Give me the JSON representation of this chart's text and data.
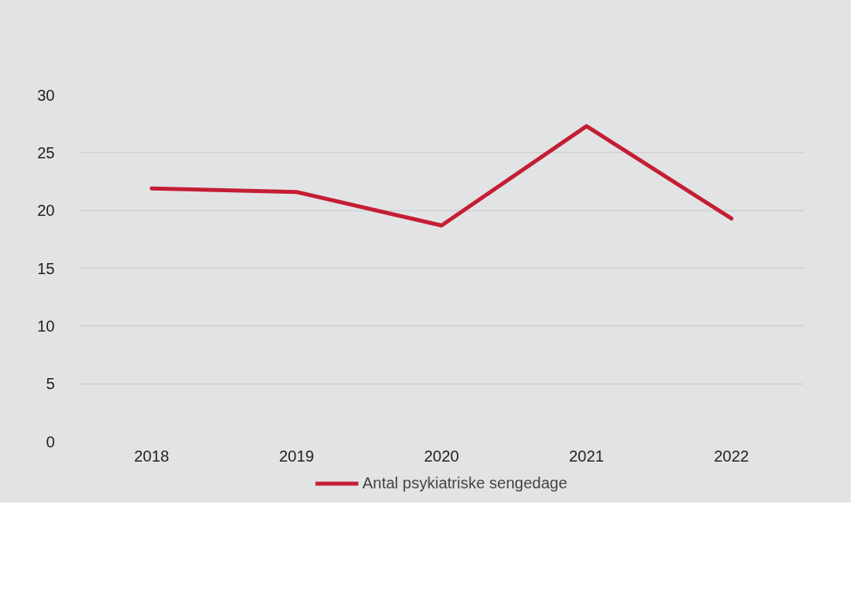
{
  "chart_data": {
    "type": "line",
    "categories": [
      "2018",
      "2019",
      "2020",
      "2021",
      "2022"
    ],
    "series": [
      {
        "name": "Antal psykiatriske sengedage",
        "color": "#c41e34",
        "values": [
          21.9,
          21.6,
          18.7,
          27.3,
          19.3
        ]
      }
    ],
    "ylim": [
      0,
      30
    ],
    "yticks": [
      0,
      5,
      10,
      15,
      20,
      25,
      30
    ],
    "grid": "y",
    "legend": "bottom"
  }
}
